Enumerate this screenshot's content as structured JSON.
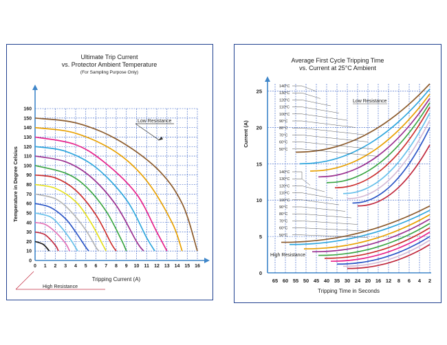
{
  "chart_data": [
    {
      "type": "line",
      "title": "Ultimate Trip Current",
      "subtitle": "vs. Protector Ambient Temperature",
      "note": "(For Sampling Purpose Only)",
      "xlabel": "Tripping Current (A)",
      "ylabel": "Temperature in Degree Celsius",
      "xlim": [
        0,
        16
      ],
      "ylim": [
        0,
        160
      ],
      "grid": true,
      "xticks": [
        "0",
        "1",
        "2",
        "3",
        "4",
        "5",
        "6",
        "7",
        "8",
        "9",
        "10",
        "11",
        "12",
        "13",
        "14",
        "15",
        "16"
      ],
      "yticks": [
        "0",
        "10",
        "20",
        "30",
        "40",
        "50",
        "60",
        "70",
        "80",
        "90",
        "100",
        "110",
        "120",
        "130",
        "140",
        "150",
        "160"
      ],
      "annotations": [
        {
          "text": "Low Resistance",
          "x": 12.2,
          "y": 127
        },
        {
          "text": "High Resistance"
        }
      ],
      "series": [
        {
          "color": "#8b5a2b",
          "values": [
            [
              0,
              150
            ],
            [
              4,
              145
            ],
            [
              8,
              128
            ],
            [
              12,
              97
            ],
            [
              14.5,
              60
            ],
            [
              16,
              10
            ]
          ]
        },
        {
          "color": "#e8a000",
          "values": [
            [
              0,
              140
            ],
            [
              4,
              134
            ],
            [
              8,
              114
            ],
            [
              11,
              84
            ],
            [
              13.5,
              40
            ],
            [
              14.5,
              10
            ]
          ]
        },
        {
          "color": "#e7228a",
          "values": [
            [
              0,
              130
            ],
            [
              4,
              122
            ],
            [
              7,
              102
            ],
            [
              10,
              70
            ],
            [
              12,
              30
            ],
            [
              13,
              10
            ]
          ]
        },
        {
          "color": "#2ea6dd",
          "values": [
            [
              0,
              120
            ],
            [
              3,
              115
            ],
            [
              6,
              98
            ],
            [
              9,
              64
            ],
            [
              11,
              24
            ],
            [
              11.8,
              10
            ]
          ]
        },
        {
          "color": "#9b2f8f",
          "values": [
            [
              0,
              110
            ],
            [
              3,
              104
            ],
            [
              5.5,
              88
            ],
            [
              8,
              58
            ],
            [
              10,
              20
            ],
            [
              10.7,
              10
            ]
          ]
        },
        {
          "color": "#3aa542",
          "values": [
            [
              0,
              100
            ],
            [
              3,
              92
            ],
            [
              5,
              78
            ],
            [
              7,
              52
            ],
            [
              8.5,
              22
            ],
            [
              9,
              10
            ]
          ]
        },
        {
          "color": "#cc2d2d",
          "values": [
            [
              0,
              90
            ],
            [
              2,
              87
            ],
            [
              4,
              74
            ],
            [
              6,
              48
            ],
            [
              7.5,
              18
            ],
            [
              8,
              10
            ]
          ]
        },
        {
          "color": "#e6e020",
          "values": [
            [
              0,
              80
            ],
            [
              2,
              76
            ],
            [
              4,
              62
            ],
            [
              5.5,
              40
            ],
            [
              6.7,
              16
            ],
            [
              7,
              10
            ]
          ]
        },
        {
          "color": "#b4b4b4",
          "values": [
            [
              0,
              70
            ],
            [
              2,
              65
            ],
            [
              3.5,
              52
            ],
            [
              5,
              32
            ],
            [
              6,
              14
            ],
            [
              6.3,
              10
            ]
          ]
        },
        {
          "color": "#2b55c6",
          "values": [
            [
              0,
              60
            ],
            [
              1.5,
              56
            ],
            [
              3,
              44
            ],
            [
              4,
              30
            ],
            [
              5,
              14
            ],
            [
              5.3,
              10
            ]
          ]
        },
        {
          "color": "#66c0ea",
          "values": [
            [
              0,
              50
            ],
            [
              1.5,
              46
            ],
            [
              2.5,
              36
            ],
            [
              3.5,
              22
            ],
            [
              4.2,
              10
            ]
          ]
        },
        {
          "color": "#e26fb5",
          "values": [
            [
              0,
              40
            ],
            [
              1,
              38
            ],
            [
              2,
              30
            ],
            [
              3,
              18
            ],
            [
              3.4,
              10
            ]
          ]
        },
        {
          "color": "#c0273c",
          "values": [
            [
              0,
              30
            ],
            [
              1,
              27
            ],
            [
              2,
              16
            ],
            [
              2.3,
              10
            ]
          ]
        },
        {
          "color": "#1a1a1a",
          "values": [
            [
              0,
              20
            ],
            [
              0.8,
              17
            ],
            [
              1.4,
              10
            ]
          ]
        }
      ]
    },
    {
      "type": "line",
      "title": "Average First Cycle Tripping Time",
      "subtitle": "vs. Current at 25°C Ambient",
      "xlabel": "Tripping Time in Seconds",
      "ylabel": "Current (A)",
      "ylim": [
        0,
        26
      ],
      "grid": true,
      "xticks": [
        "65",
        "60",
        "55",
        "50",
        "45",
        "40",
        "35",
        "30",
        "24",
        "20",
        "16",
        "12",
        "8",
        "6",
        "4",
        "2"
      ],
      "yticks": [
        "0",
        "5",
        "10",
        "15",
        "20",
        "25"
      ],
      "annotations": [
        {
          "text": "Low Resistance"
        },
        {
          "text": "High Resistance"
        }
      ],
      "low_labels": [
        "140°C",
        "130°C",
        "120°C",
        "110°C",
        "100°C",
        "90°C",
        "80°C",
        "70°C",
        "60°C",
        "50°C"
      ],
      "high_labels": [
        "140°C",
        "130°C",
        "120°C",
        "110°C",
        "100°C",
        "90°C",
        "80°C",
        "70°C",
        "60°C",
        "50°C"
      ],
      "low_series": [
        {
          "color": "#8b5a2b",
          "start": 55,
          "y0": 16.6,
          "y1": 26
        },
        {
          "color": "#2ea6dd",
          "start": 53,
          "y0": 15,
          "y1": 25.3
        },
        {
          "color": "#e8a000",
          "start": 48,
          "y0": 14,
          "y1": 24.6
        },
        {
          "color": "#9b2f8f",
          "start": 44,
          "y0": 13.2,
          "y1": 24
        },
        {
          "color": "#3aa542",
          "start": 40,
          "y0": 12.4,
          "y1": 23.4
        },
        {
          "color": "#cc2d2d",
          "start": 36,
          "y0": 11.7,
          "y1": 22.8
        },
        {
          "color": "#66c0ea",
          "start": 32,
          "y0": 10.9,
          "y1": 22
        },
        {
          "color": "#d6bcd6",
          "start": 30,
          "y0": 10.2,
          "y1": 21
        },
        {
          "color": "#2b55c6",
          "start": 27,
          "y0": 9.6,
          "y1": 20
        },
        {
          "color": "#c0273c",
          "start": 24,
          "y0": 9.2,
          "y1": 17.6
        }
      ],
      "high_series": [
        {
          "color": "#8b5a2b",
          "start": 62,
          "y0": 4.2,
          "y1": 9.2
        },
        {
          "color": "#2ea6dd",
          "start": 58,
          "y0": 3.9,
          "y1": 8.6
        },
        {
          "color": "#e8a000",
          "start": 51,
          "y0": 3.3,
          "y1": 8.0
        },
        {
          "color": "#9b2f8f",
          "start": 47,
          "y0": 2.9,
          "y1": 7.4
        },
        {
          "color": "#3aa542",
          "start": 44,
          "y0": 2.4,
          "y1": 6.8
        },
        {
          "color": "#cc2d2d",
          "start": 41,
          "y0": 2.0,
          "y1": 6.2
        },
        {
          "color": "#e7228a",
          "start": 38,
          "y0": 1.6,
          "y1": 5.6
        },
        {
          "color": "#2b55c6",
          "start": 35,
          "y0": 1.2,
          "y1": 5.0
        },
        {
          "color": "#d6bcd6",
          "start": 32,
          "y0": 0.9,
          "y1": 4.5
        },
        {
          "color": "#c0273c",
          "start": 30,
          "y0": 0.6,
          "y1": 3.9
        }
      ]
    }
  ],
  "colors": {
    "axis": "#3f86c9",
    "grid": "#2b58c4",
    "frame": "#1f3f8f",
    "text": "#1a1a1a"
  }
}
